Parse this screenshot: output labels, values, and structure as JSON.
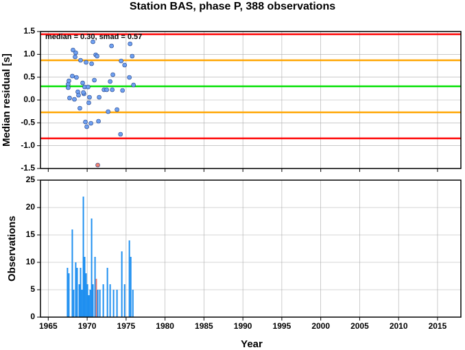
{
  "chart_data": [
    {
      "type": "scatter",
      "title": "Station BAS, phase P, 388 observations",
      "ylabel": "Median residual [s]",
      "annotation": "median = 0.30, smad = 0.57",
      "xlim": [
        1964,
        2018
      ],
      "xticks": [
        1965,
        1970,
        1975,
        1980,
        1985,
        1990,
        1995,
        2000,
        2005,
        2010,
        2015
      ],
      "xtick_labels": false,
      "ylim": [
        -1.5,
        1.5
      ],
      "yticks": [
        {
          "value": -1.5,
          "label": "-1.5"
        },
        {
          "value": -1,
          "label": "-1.0"
        },
        {
          "value": -0.5,
          "label": "-0.5"
        },
        {
          "value": 0,
          "label": "0.0"
        },
        {
          "value": 0.5,
          "label": "0.5"
        },
        {
          "value": 1,
          "label": "1.0"
        },
        {
          "value": 1.5,
          "label": "1.5"
        }
      ],
      "grid": true,
      "hlines": [
        {
          "value": 1.44,
          "color": "#ff0000"
        },
        {
          "value": 0.87,
          "color": "#ffa500"
        },
        {
          "value": 0.3,
          "color": "#00e000"
        },
        {
          "value": -0.27,
          "color": "#ffa500"
        },
        {
          "value": -0.84,
          "color": "#ff0000"
        }
      ],
      "series": [
        {
          "color": "#6fa0f0",
          "x": [
            1967.56,
            1967.65,
            1967.56,
            1967.74,
            1968.18,
            1968.36,
            1968.09,
            1968.53,
            1968.45,
            1968.62,
            1968.8,
            1969.06,
            1968.89,
            1969.15,
            1969.42,
            1969.59,
            1969.51,
            1969.68,
            1969.77,
            1969.95,
            1969.86,
            1970.12,
            1970.3,
            1970.21,
            1970.48,
            1970.57,
            1970.74,
            1970.92,
            1971.1,
            1971.27,
            1971.45,
            1971.54,
            1972.16,
            1972.51,
            1972.69,
            1972.95,
            1973.13,
            1973.3,
            1973.22,
            1973.83,
            1974.36,
            1974.28,
            1974.54,
            1974.81,
            1975.42,
            1975.51,
            1975.78,
            1975.95
          ],
          "values": [
            0.345,
            0.42,
            0.27,
            0.045,
            1.095,
            0.015,
            0.525,
            1.035,
            0.945,
            0.495,
            0.18,
            -0.18,
            0.105,
            0.87,
            0.375,
            0.135,
            0.165,
            0.285,
            -0.48,
            -0.585,
            0.825,
            0.285,
            0.06,
            -0.06,
            -0.51,
            0.795,
            1.275,
            0.435,
            0.99,
            0.96,
            -0.465,
            0.06,
            0.225,
            0.225,
            -0.255,
            0.405,
            1.185,
            0.555,
            0.225,
            -0.21,
            0.855,
            -0.75,
            0.21,
            0.765,
            0.495,
            1.23,
            0.96,
            0.33
          ]
        },
        {
          "color": "#f08070",
          "x": [
            1971.36
          ],
          "values": [
            -1.425
          ]
        }
      ]
    },
    {
      "type": "bar",
      "ylabel": "Observations",
      "xlabel": "Year",
      "xlim": [
        1964,
        2018
      ],
      "xticks": [
        1965,
        1970,
        1975,
        1980,
        1985,
        1990,
        1995,
        2000,
        2005,
        2010,
        2015
      ],
      "xtick_labels": true,
      "ylim": [
        0,
        25
      ],
      "yticks": [
        0,
        5,
        10,
        15,
        20,
        25
      ],
      "grid": true,
      "series": [
        {
          "color": "#1e8ff0",
          "x": [
            1967.47,
            1967.65,
            1968.09,
            1968.27,
            1968.53,
            1968.71,
            1968.98,
            1969.15,
            1969.33,
            1969.51,
            1969.68,
            1969.86,
            1970.04,
            1970.21,
            1970.39,
            1970.57,
            1970.74,
            1971.01,
            1971.36,
            1971.63,
            1972.07,
            1972.6,
            1972.95,
            1973.39,
            1973.83,
            1974.45,
            1974.81,
            1975.42,
            1975.6,
            1975.87
          ],
          "values": [
            9,
            8,
            16,
            5,
            10,
            9,
            6,
            9,
            5,
            22,
            11,
            8,
            6,
            4,
            5,
            18,
            6,
            11,
            5,
            5,
            6,
            9,
            6,
            5,
            5,
            12,
            6,
            14,
            11,
            5
          ]
        },
        {
          "color": "#f08070",
          "x": [
            1971.18
          ],
          "values": [
            7
          ]
        }
      ]
    }
  ]
}
